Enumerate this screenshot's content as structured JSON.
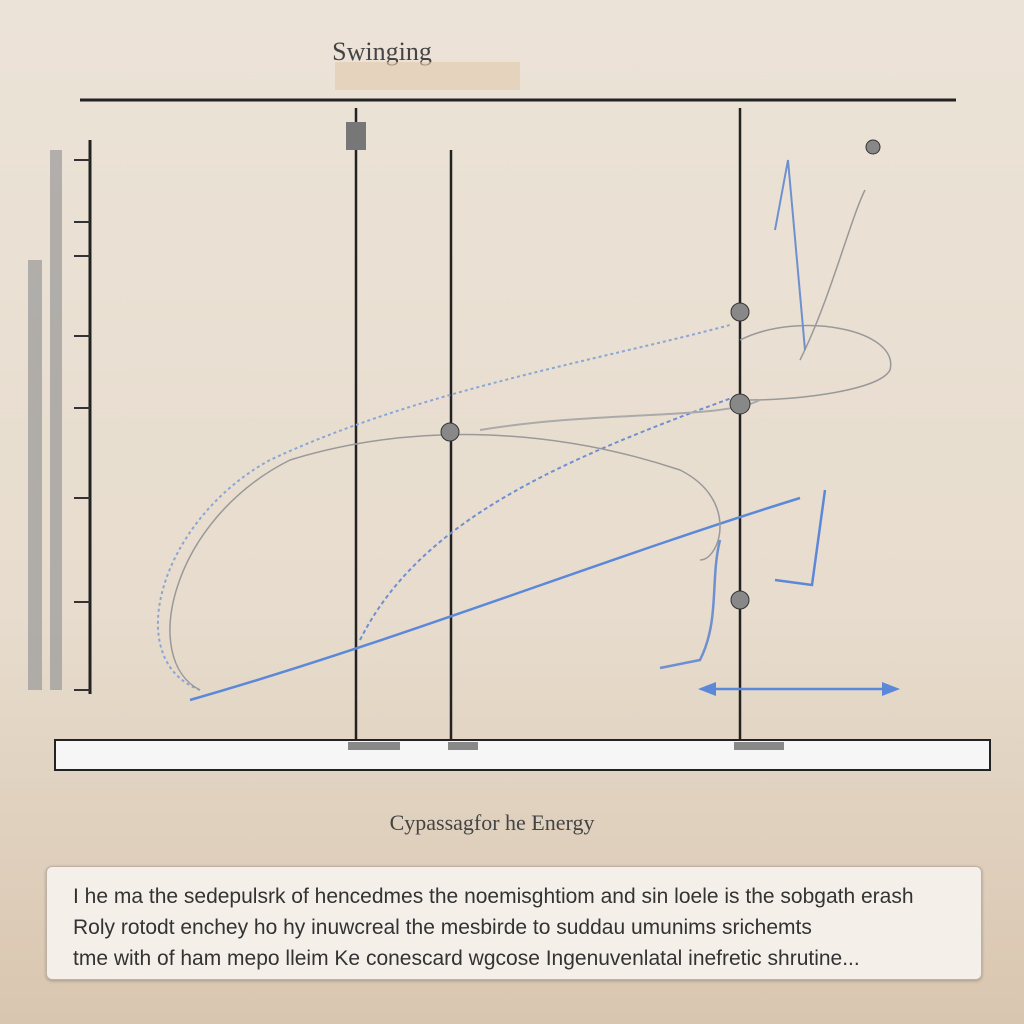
{
  "title": "Swinging",
  "caption": "Cypassagfor he Energy",
  "description": {
    "lines": [
      "I he ma the sedepulsrk of hencedmes the noemisghtiom and sin loele is the sobgath erash",
      "Roly rotodt enchey ho hy inuwcreal the mesbirde to suddau umunims srichemts",
      "tme with of ham mepo lleim Ke conescard wgcose Ingenuvenlatal  inefretic shrutine..."
    ]
  }
}
